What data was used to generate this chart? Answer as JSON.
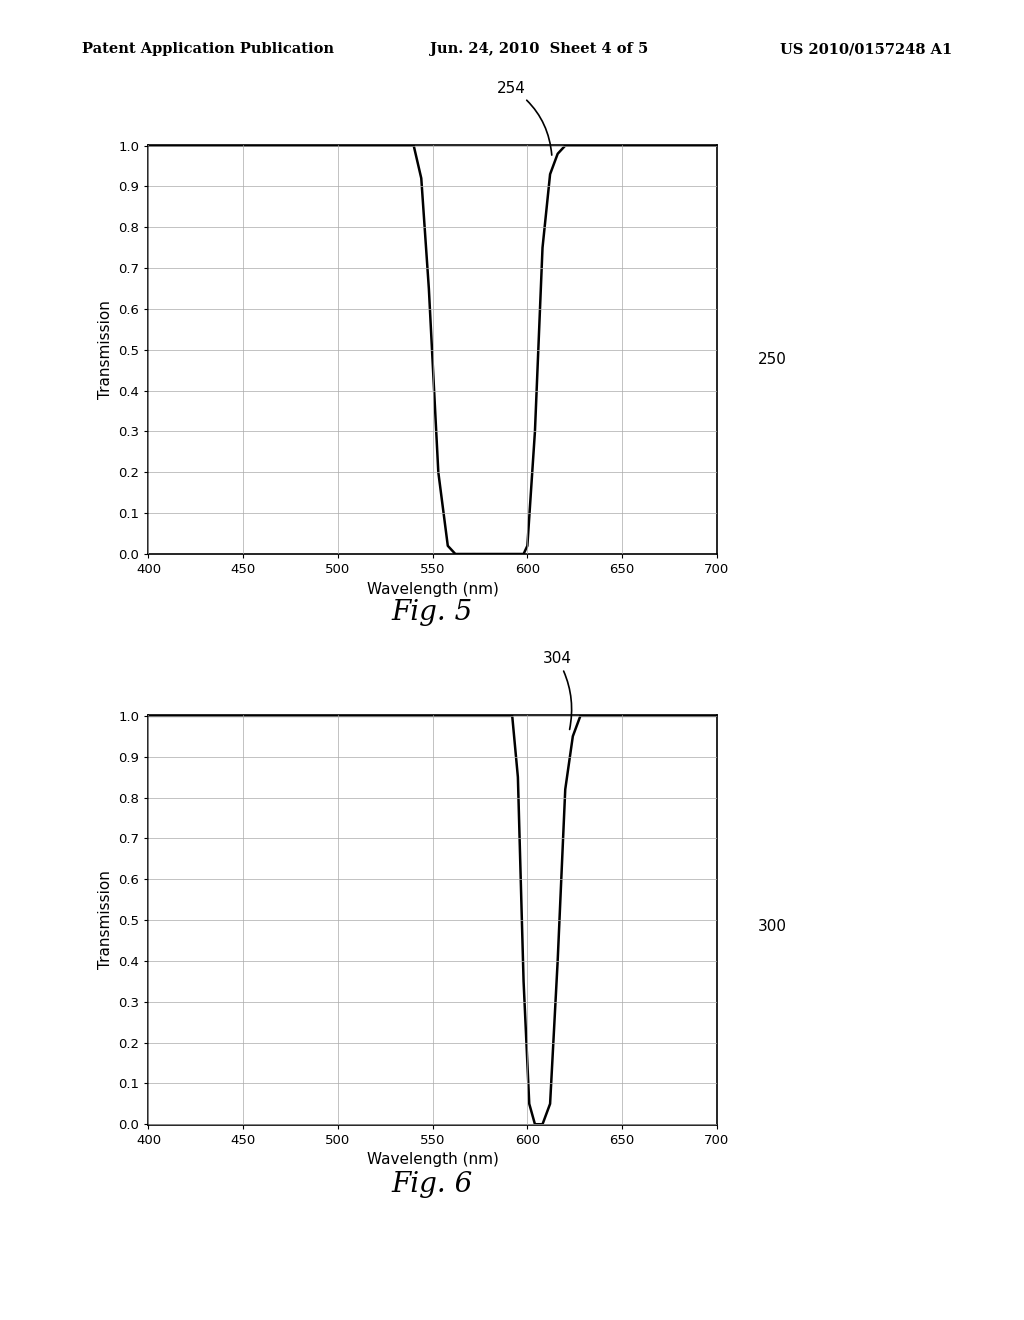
{
  "fig5": {
    "label": "254",
    "xlabel": "Wavelength (nm)",
    "ylabel": "Transmission",
    "xlim": [
      400,
      700
    ],
    "ylim": [
      0.0,
      1.0
    ],
    "xticks": [
      400,
      450,
      500,
      550,
      600,
      650,
      700
    ],
    "yticks": [
      0.0,
      0.1,
      0.2,
      0.3,
      0.4,
      0.5,
      0.6,
      0.7,
      0.8,
      0.9,
      1.0
    ],
    "caption": "Fig. 5",
    "ref_label": "250"
  },
  "fig6": {
    "label": "304",
    "xlabel": "Wavelength (nm)",
    "ylabel": "Transmission",
    "xlim": [
      400,
      700
    ],
    "ylim": [
      0.0,
      1.0
    ],
    "xticks": [
      400,
      450,
      500,
      550,
      600,
      650,
      700
    ],
    "yticks": [
      0.0,
      0.1,
      0.2,
      0.3,
      0.4,
      0.5,
      0.6,
      0.7,
      0.8,
      0.9,
      1.0
    ],
    "caption": "Fig. 6",
    "ref_label": "300"
  },
  "header_left": "Patent Application Publication",
  "header_center": "Jun. 24, 2010  Sheet 4 of 5",
  "header_right": "US 2010/0157248 A1",
  "background_color": "#ffffff",
  "line_color": "#000000",
  "grid_color": "#aaaaaa",
  "text_color": "#000000"
}
